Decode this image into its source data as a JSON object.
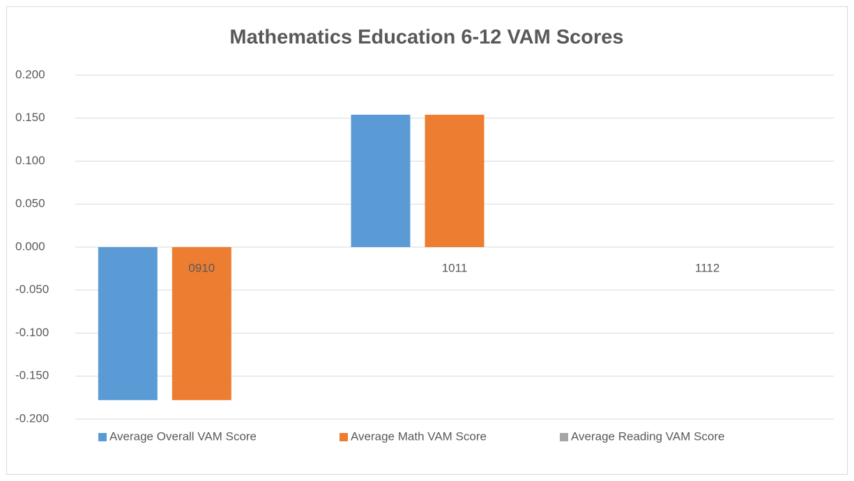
{
  "chart_data": {
    "type": "bar",
    "title": "Mathematics Education 6-12 VAM Scores",
    "categories": [
      "0910",
      "1011",
      "1112"
    ],
    "series": [
      {
        "name": "Average Overall VAM Score",
        "color": "#5b9bd5",
        "values": [
          -0.178,
          0.154,
          null
        ]
      },
      {
        "name": "Average Math VAM Score",
        "color": "#ed7d31",
        "values": [
          -0.178,
          0.154,
          null
        ]
      },
      {
        "name": "Average Reading VAM Score",
        "color": "#a5a5a5",
        "values": [
          null,
          null,
          null
        ]
      }
    ],
    "ylim": [
      -0.2,
      0.2
    ],
    "yticks": [
      {
        "value": -0.2,
        "label": "-0.200"
      },
      {
        "value": -0.15,
        "label": "-0.150"
      },
      {
        "value": -0.1,
        "label": "-0.100"
      },
      {
        "value": -0.05,
        "label": "-0.050"
      },
      {
        "value": 0,
        "label": "0.000"
      },
      {
        "value": 0.05,
        "label": "0.050"
      },
      {
        "value": 0.1,
        "label": "0.100"
      },
      {
        "value": 0.15,
        "label": "0.150"
      },
      {
        "value": 0.2,
        "label": "0.200"
      }
    ],
    "grid": true,
    "legend": "bottom"
  }
}
